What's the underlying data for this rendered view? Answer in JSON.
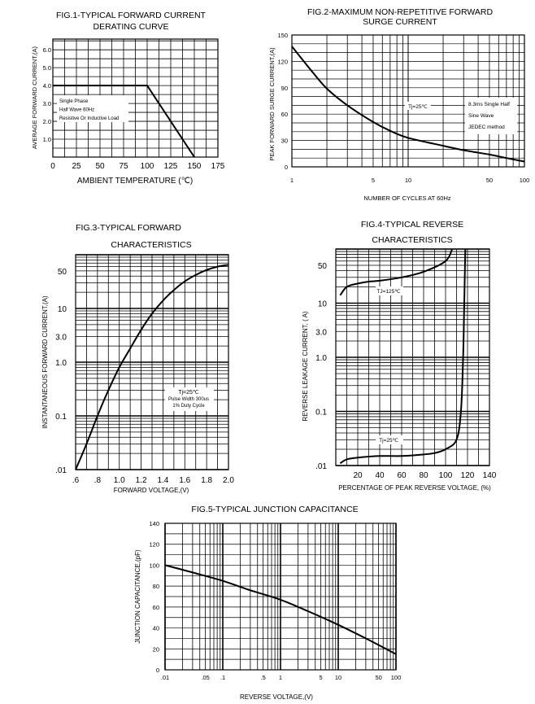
{
  "chart_data": [
    {
      "type": "line",
      "title": "FIG.1-TYPICAL FORWARD CURRENT",
      "subtitle": "DERATING CURVE",
      "xlabel": "AMBIENT TEMPERATURE (℃)",
      "ylabel": "AVERAGE FORWARD CURRENT,(A)",
      "x_ticks": [
        "0",
        "25",
        "50",
        "75",
        "100",
        "125",
        "150",
        "175"
      ],
      "y_ticks": [
        "1.0",
        "2.0",
        "3.0",
        "4.0",
        "5.0",
        "6.0"
      ],
      "xlim": [
        0,
        175
      ],
      "ylim": [
        0,
        6.6
      ],
      "grid": true,
      "legend": [
        "Single Phase",
        "Half Wave 60Hz",
        "Resistive Or Inductive Load"
      ],
      "series": [
        {
          "x": [
            0,
            100,
            150
          ],
          "y": [
            4.0,
            4.0,
            0
          ]
        }
      ]
    },
    {
      "type": "line",
      "title": "FIG.2-MAXIMUM NON-REPETITIVE FORWARD",
      "subtitle": "SURGE CURRENT",
      "xlabel": "NUMBER OF CYCLES AT 60Hz",
      "ylabel": "PEAK FORWARD SURGE CURRENT,(A)",
      "x_scale": "log",
      "x_ticks": [
        "1",
        "5",
        "10",
        "50",
        "100"
      ],
      "y_ticks": [
        "0",
        "30",
        "60",
        "90",
        "120",
        "150"
      ],
      "xlim": [
        1,
        100
      ],
      "ylim": [
        0,
        150
      ],
      "grid": true,
      "annotations": [
        "Tj=25℃",
        "8.3ms Single Half",
        "Sine Wave",
        "JEDEC method"
      ],
      "series": [
        {
          "x": [
            1,
            1.5,
            2,
            3,
            5,
            7,
            10,
            20,
            30,
            50,
            70,
            100
          ],
          "y": [
            137,
            108,
            89,
            70,
            51,
            41,
            33,
            24,
            19,
            14,
            10,
            6
          ]
        }
      ]
    },
    {
      "type": "line",
      "title": "FIG.3-TYPICAL FORWARD",
      "subtitle": "CHARACTERISTICS",
      "xlabel": "FORWARD VOLTAGE,(V)",
      "ylabel": "INSTANTANEOUS FORWARD CURRENT,(A)",
      "y_scale": "log",
      "x_ticks": [
        ".6",
        ".8",
        "1.0",
        "1.2",
        "1.4",
        "1.6",
        "1.8",
        "2.0"
      ],
      "y_ticks": [
        ".01",
        "0.1",
        "1.0",
        "3.0",
        "10",
        "50"
      ],
      "xlim": [
        0.6,
        2.0
      ],
      "ylim": [
        0.01,
        100
      ],
      "grid": true,
      "annotations": [
        "Tj=25℃",
        "Pulse Width 300us",
        "1% Duty Cycle"
      ],
      "series": [
        {
          "x": [
            0.6,
            0.7,
            0.8,
            0.9,
            1.0,
            1.1,
            1.2,
            1.3,
            1.4,
            1.5,
            1.6,
            1.7,
            1.8,
            1.9,
            2.0
          ],
          "y": [
            0.01,
            0.03,
            0.1,
            0.3,
            0.8,
            1.8,
            4,
            8,
            14,
            22,
            32,
            42,
            52,
            60,
            65
          ]
        }
      ]
    },
    {
      "type": "line",
      "title": "FIG.4-TYPICAL REVERSE",
      "subtitle": "CHARACTERISTICS",
      "xlabel": "PERCENTAGE OF PEAK REVERSE VOLTAGE, (%)",
      "ylabel": "REVERSE LEAKAGE CURRENT, ( A)",
      "y_scale": "log",
      "x_ticks": [
        "20",
        "40",
        "60",
        "80",
        "100",
        "120",
        "140"
      ],
      "y_ticks": [
        ".01",
        "0.1",
        "1.0",
        "3.0",
        "10",
        "50"
      ],
      "xlim": [
        0,
        140
      ],
      "ylim": [
        0.01,
        100
      ],
      "grid": true,
      "series": [
        {
          "name": "TJ=125℃",
          "x": [
            4,
            10,
            20,
            30,
            40,
            60,
            80,
            100,
            106
          ],
          "y": [
            14,
            20,
            23,
            25,
            26,
            30,
            38,
            60,
            100
          ]
        },
        {
          "name": "Tj=25℃",
          "x": [
            4,
            10,
            20,
            40,
            60,
            80,
            90,
            100,
            110,
            114,
            116,
            117,
            118
          ],
          "y": [
            0.011,
            0.013,
            0.014,
            0.015,
            0.015,
            0.016,
            0.017,
            0.02,
            0.03,
            0.1,
            1,
            10,
            100
          ]
        }
      ]
    },
    {
      "type": "line",
      "title": "FIG.5-TYPICAL JUNCTION CAPACITANCE",
      "xlabel": "REVERSE VOLTAGE,(V)",
      "ylabel": "JUNCTION CAPACITANCE,(pF)",
      "x_scale": "log",
      "x_ticks": [
        ".01",
        ".05",
        ".1",
        ".5",
        "1",
        "5",
        "10",
        "50",
        "100"
      ],
      "y_ticks": [
        "0",
        "20",
        "40",
        "60",
        "80",
        "100",
        "120",
        "140"
      ],
      "xlim": [
        0.01,
        100
      ],
      "ylim": [
        0,
        140
      ],
      "grid": true,
      "series": [
        {
          "x": [
            0.01,
            0.03,
            0.1,
            0.3,
            1,
            3,
            10,
            30,
            100
          ],
          "y": [
            100,
            93,
            85,
            76,
            67,
            56,
            43,
            30,
            15
          ]
        }
      ]
    }
  ]
}
